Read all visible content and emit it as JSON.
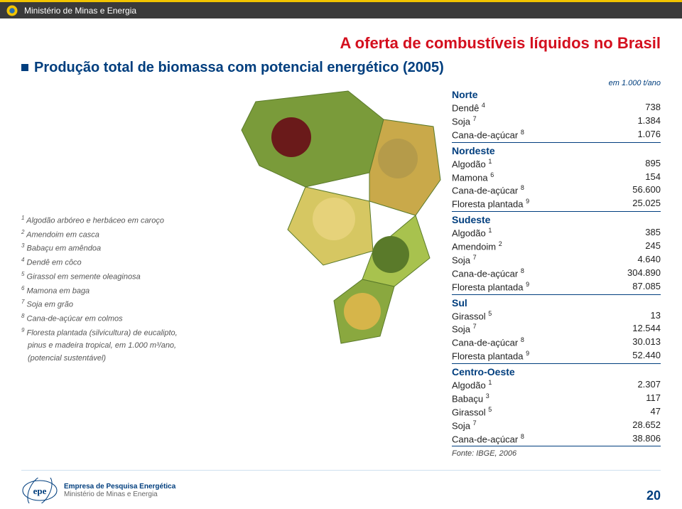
{
  "header": {
    "ministry": "Ministério de Minas e Energia"
  },
  "main_title": "A oferta de combustíveis líquidos no Brasil",
  "subtitle": "Produção total de biomassa com potencial energético (2005)",
  "unit": "em 1.000 t/ano",
  "footnotes": [
    "Algodão arbóreo e herbáceo em caroço",
    "Amendoim em casca",
    "Babaçu em amêndoa",
    "Dendê em côco",
    "Girassol em semente oleaginosa",
    "Mamona em baga",
    "Soja em grão",
    "Cana-de-açúcar em colmos",
    "Floresta plantada (silvicultura) de eucalipto,"
  ],
  "footnote9_b": "pinus e madeira tropical, em 1.000 m³/ano,",
  "footnote9_c": "(potencial sustentável)",
  "regions": {
    "norte": {
      "name": "Norte",
      "rows": [
        {
          "label": "Dendê",
          "sup": "4",
          "value": "738"
        },
        {
          "label": "Soja",
          "sup": "7",
          "value": "1.384"
        },
        {
          "label": "Cana-de-açúcar",
          "sup": "8",
          "value": "1.076"
        }
      ]
    },
    "nordeste": {
      "name": "Nordeste",
      "rows": [
        {
          "label": "Algodão",
          "sup": "1",
          "value": "895"
        },
        {
          "label": "Mamona",
          "sup": "6",
          "value": "154"
        },
        {
          "label": "Cana-de-açúcar",
          "sup": "8",
          "value": "56.600"
        },
        {
          "label": "Floresta plantada",
          "sup": "9",
          "value": "25.025"
        }
      ]
    },
    "sudeste": {
      "name": "Sudeste",
      "rows": [
        {
          "label": "Algodão",
          "sup": "1",
          "value": "385"
        },
        {
          "label": "Amendoim",
          "sup": "2",
          "value": "245"
        },
        {
          "label": "Soja",
          "sup": "7",
          "value": "4.640"
        },
        {
          "label": "Cana-de-açúcar",
          "sup": "8",
          "value": "304.890"
        },
        {
          "label": "Floresta plantada",
          "sup": "9",
          "value": "87.085"
        }
      ]
    },
    "sul": {
      "name": "Sul",
      "rows": [
        {
          "label": "Girassol",
          "sup": "5",
          "value": "13"
        },
        {
          "label": "Soja",
          "sup": "7",
          "value": "12.544"
        },
        {
          "label": "Cana-de-açúcar",
          "sup": "8",
          "value": "30.013"
        },
        {
          "label": "Floresta plantada",
          "sup": "9",
          "value": "52.440"
        }
      ]
    },
    "centrooeste": {
      "name": "Centro-Oeste",
      "rows": [
        {
          "label": "Algodão",
          "sup": "1",
          "value": "2.307"
        },
        {
          "label": "Babaçu",
          "sup": "3",
          "value": "117"
        },
        {
          "label": "Girassol",
          "sup": "5",
          "value": "47"
        },
        {
          "label": "Soja",
          "sup": "7",
          "value": "28.652"
        },
        {
          "label": "Cana-de-açúcar",
          "sup": "8",
          "value": "38.806"
        }
      ]
    }
  },
  "source": "Fonte: IBGE, 2006",
  "page_number": "20",
  "epe": {
    "line1": "Empresa de Pesquisa Energética",
    "line2": "Ministério de Minas e Energia"
  },
  "map": {
    "fill_colors": [
      "#7a9b3a",
      "#a8c24e",
      "#c9a94a",
      "#d6c762",
      "#b08f3d",
      "#8aa83f"
    ],
    "outline": "#5a7a2a"
  },
  "colors": {
    "title_red": "#d40f1e",
    "subtitle_blue": "#003e7e",
    "header_bg": "#3a3a3a",
    "header_accent": "#f2c400"
  }
}
